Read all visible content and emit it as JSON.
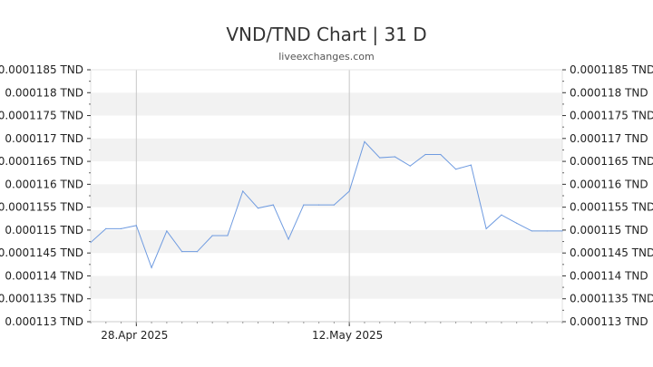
{
  "chart_data": {
    "type": "line",
    "title": "VND/TND Chart | 31 D",
    "subtitle": "liveexchanges.com",
    "xlabel": "",
    "ylabel": "",
    "ylim": [
      0.000113,
      0.0001185
    ],
    "y_ticks": [
      0.0001185,
      0.000118,
      0.0001175,
      0.000117,
      0.0001165,
      0.000116,
      0.0001155,
      0.000115,
      0.0001145,
      0.000114,
      0.0001135,
      0.000113
    ],
    "y_tick_labels": [
      "0.0001185 TND",
      "0.000118 TND",
      "0.0001175 TND",
      "0.000117 TND",
      "0.0001165 TND",
      "0.000116 TND",
      "0.0001155 TND",
      "0.000115 TND",
      "0.0001145 TND",
      "0.000114 TND",
      "0.0001135 TND",
      "0.000113 TND"
    ],
    "x_tick_labels": [
      {
        "index": 3,
        "label": "28.Apr 2025"
      },
      {
        "index": 17,
        "label": "12.May 2025"
      }
    ],
    "grid": "horizontal alternating bands",
    "line_color": "#6f9be0",
    "band_color": "#f2f2f2",
    "series": [
      {
        "values": [
          0.00011473,
          0.00011503,
          0.00011503,
          0.0001151,
          0.00011418,
          0.00011498,
          0.00011453,
          0.00011453,
          0.00011488,
          0.00011488,
          0.00011585,
          0.00011548,
          0.00011555,
          0.0001148,
          0.00011555,
          0.00011555,
          0.00011555,
          0.00011585,
          0.00011693,
          0.00011658,
          0.0001166,
          0.0001164,
          0.00011665,
          0.00011665,
          0.00011633,
          0.00011642,
          0.00011503,
          0.00011533,
          0.00011515,
          0.00011498,
          0.00011498,
          0.00011498
        ]
      }
    ]
  }
}
